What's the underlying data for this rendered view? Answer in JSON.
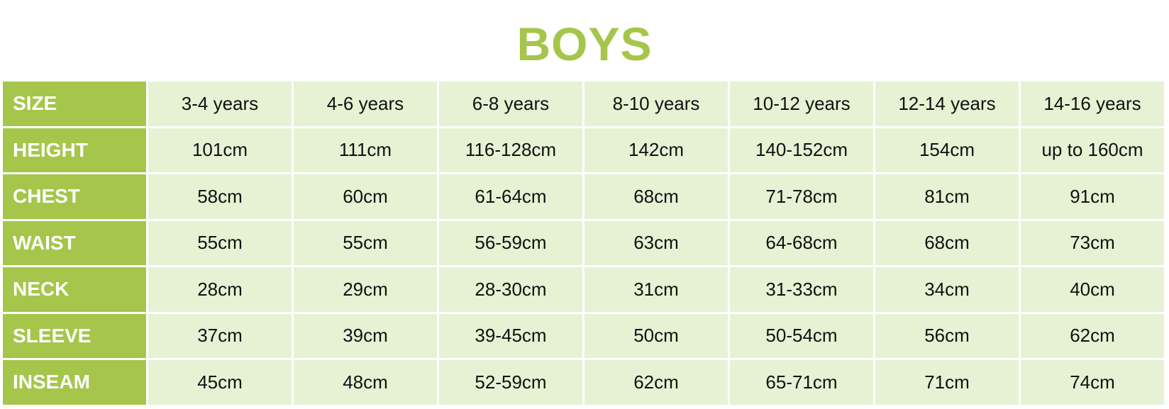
{
  "title": "BOYS",
  "colors": {
    "accent": "#a5c64a",
    "cell_bg": "#e6f2d3"
  },
  "rows": [
    {
      "label": "SIZE",
      "values": [
        "3-4 years",
        "4-6 years",
        "6-8 years",
        "8-10 years",
        "10-12 years",
        "12-14 years",
        "14-16 years"
      ]
    },
    {
      "label": "HEIGHT",
      "values": [
        "101cm",
        "111cm",
        "116-128cm",
        "142cm",
        "140-152cm",
        "154cm",
        "up to 160cm"
      ]
    },
    {
      "label": "CHEST",
      "values": [
        "58cm",
        "60cm",
        "61-64cm",
        "68cm",
        "71-78cm",
        "81cm",
        "91cm"
      ]
    },
    {
      "label": "WAIST",
      "values": [
        "55cm",
        "55cm",
        "56-59cm",
        "63cm",
        "64-68cm",
        "68cm",
        "73cm"
      ]
    },
    {
      "label": "NECK",
      "values": [
        "28cm",
        "29cm",
        "28-30cm",
        "31cm",
        "31-33cm",
        "34cm",
        "40cm"
      ]
    },
    {
      "label": "SLEEVE",
      "values": [
        "37cm",
        "39cm",
        "39-45cm",
        "50cm",
        "50-54cm",
        "56cm",
        "62cm"
      ]
    },
    {
      "label": "INSEAM",
      "values": [
        "45cm",
        "48cm",
        "52-59cm",
        "62cm",
        "65-71cm",
        "71cm",
        "74cm"
      ]
    }
  ]
}
